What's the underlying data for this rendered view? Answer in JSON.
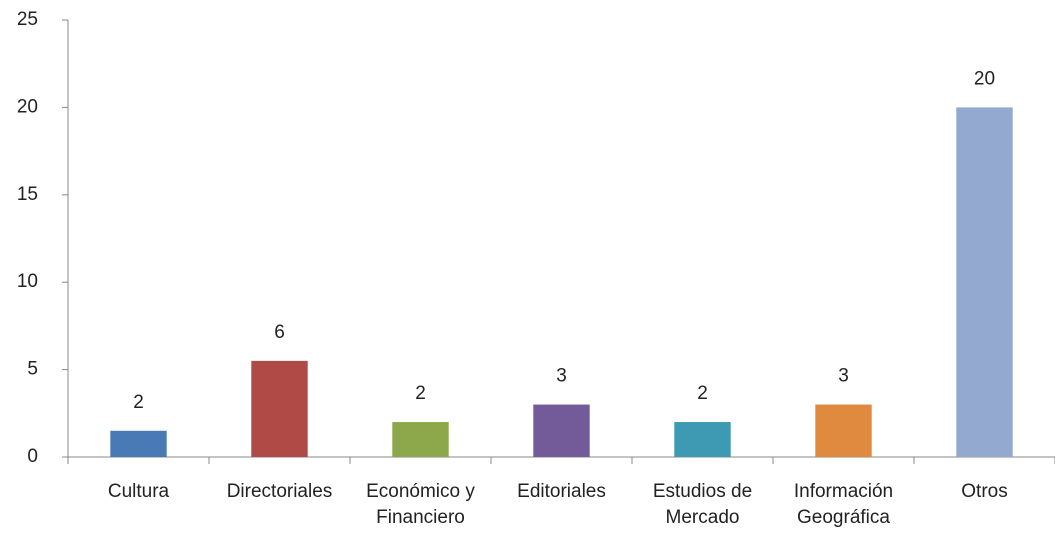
{
  "chart_data": {
    "type": "bar",
    "categories": [
      "Cultura",
      "Directoriales",
      "Económico y Financiero",
      "Editoriales",
      "Estudios de Mercado",
      "Información Geográfica",
      "Otros"
    ],
    "values": [
      1.5,
      5.5,
      2,
      3,
      2,
      3,
      20
    ],
    "value_labels": [
      "2",
      "6",
      "2",
      "3",
      "2",
      "3",
      "20"
    ],
    "colors": [
      "#4a7ab5",
      "#b04a47",
      "#8ca84b",
      "#735a98",
      "#3e9ab3",
      "#df8a3e",
      "#94a9d0"
    ],
    "ylim": [
      0,
      25
    ],
    "yticks": [
      0,
      5,
      10,
      15,
      20,
      25
    ],
    "grid": false
  }
}
